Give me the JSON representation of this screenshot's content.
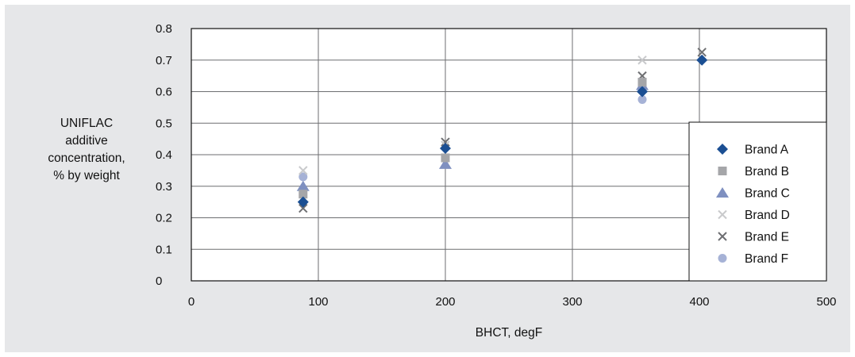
{
  "chart_data": {
    "type": "scatter",
    "xlabel": "BHCT, degF",
    "ylabel_lines": [
      "UNIFLAC",
      "additive",
      "concentration,",
      "% by weight"
    ],
    "xlim": [
      0,
      500
    ],
    "ylim": [
      0,
      0.8
    ],
    "x_ticks": [
      0,
      100,
      200,
      300,
      400,
      500
    ],
    "x_tick_labels": [
      "0",
      "100",
      "200",
      "300",
      "400",
      "500"
    ],
    "y_ticks": [
      0,
      0.1,
      0.2,
      0.3,
      0.4,
      0.5,
      0.6,
      0.7,
      0.8
    ],
    "y_tick_labels": [
      "0",
      "0.1",
      "0.2",
      "0.3",
      "0.4",
      "0.5",
      "0.6",
      "0.7",
      "0.8"
    ],
    "grid": true,
    "legend_position": "lower-right",
    "series": [
      {
        "name": "Brand A",
        "marker": "diamond",
        "color": "#1b4f93",
        "points": [
          [
            88,
            0.25
          ],
          [
            200,
            0.42
          ],
          [
            355,
            0.6
          ],
          [
            402,
            0.7
          ]
        ]
      },
      {
        "name": "Brand B",
        "marker": "square",
        "color": "#a5a6a9",
        "points": [
          [
            88,
            0.275
          ],
          [
            200,
            0.39
          ],
          [
            355,
            0.63
          ]
        ]
      },
      {
        "name": "Brand C",
        "marker": "triangle",
        "color": "#7f90c0",
        "points": [
          [
            88,
            0.3
          ],
          [
            200,
            0.37
          ],
          [
            355,
            0.62
          ]
        ]
      },
      {
        "name": "Brand D",
        "marker": "x",
        "color": "#c9cacc",
        "points": [
          [
            88,
            0.35
          ],
          [
            200,
            0.43
          ],
          [
            355,
            0.7
          ]
        ]
      },
      {
        "name": "Brand E",
        "marker": "x",
        "color": "#6e6f72",
        "points": [
          [
            88,
            0.23
          ],
          [
            200,
            0.44
          ],
          [
            355,
            0.65
          ],
          [
            402,
            0.725
          ]
        ]
      },
      {
        "name": "Brand F",
        "marker": "circle",
        "color": "#a6b2d6",
        "points": [
          [
            88,
            0.33
          ],
          [
            355,
            0.575
          ]
        ]
      }
    ]
  }
}
